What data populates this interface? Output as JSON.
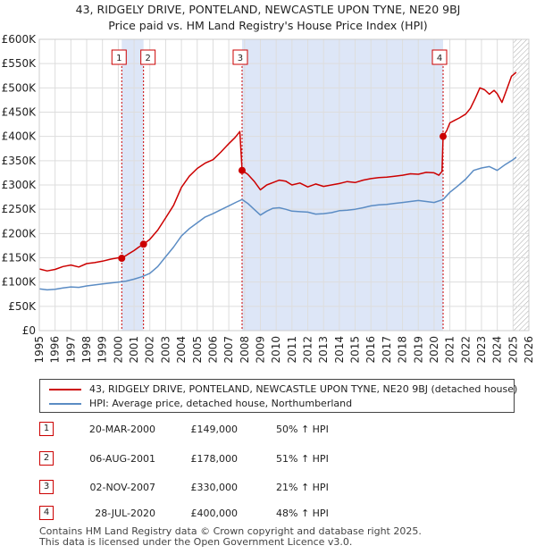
{
  "header": {
    "title_line1": "43, RIDGELY DRIVE, PONTELAND, NEWCASTLE UPON TYNE, NE20 9BJ",
    "title_line2": "Price paid vs. HM Land Registry's House Price Index (HPI)"
  },
  "colors": {
    "property": "#cc0000",
    "hpi": "#5b8cc4",
    "shade": "#dde6f7",
    "grid": "#dddddd",
    "hatch": "#aaaaaa"
  },
  "chart_data": {
    "type": "line",
    "title": "43, RIDGELY DRIVE, PONTELAND, NEWCASTLE UPON TYNE, NE20 9BJ — Price paid vs. HM Land Registry's House Price Index (HPI)",
    "xlabel": "",
    "ylabel": "",
    "xlim": [
      1995,
      2026
    ],
    "ylim": [
      0,
      600000
    ],
    "y_ticks": [
      0,
      50000,
      100000,
      150000,
      200000,
      250000,
      300000,
      350000,
      400000,
      450000,
      500000,
      550000,
      600000
    ],
    "y_tick_labels": [
      "£0",
      "£50K",
      "£100K",
      "£150K",
      "£200K",
      "£250K",
      "£300K",
      "£350K",
      "£400K",
      "£450K",
      "£500K",
      "£550K",
      "£600K"
    ],
    "x_ticks": [
      1995,
      1996,
      1997,
      1998,
      1999,
      2000,
      2001,
      2002,
      2003,
      2004,
      2005,
      2006,
      2007,
      2008,
      2009,
      2010,
      2011,
      2012,
      2013,
      2014,
      2015,
      2016,
      2017,
      2018,
      2019,
      2020,
      2021,
      2022,
      2023,
      2024,
      2025,
      2026
    ],
    "grid": true,
    "shaded_ranges": [
      [
        2000.22,
        2001.6
      ],
      [
        2007.84,
        2020.57
      ]
    ],
    "hatched_range": [
      2025.0,
      2026
    ],
    "series": [
      {
        "name": "43, RIDGELY DRIVE, PONTELAND, NEWCASTLE UPON TYNE, NE20 9BJ (detached house)",
        "x": [
          1995.0,
          1995.5,
          1996.0,
          1996.5,
          1997.0,
          1997.5,
          1998.0,
          1998.5,
          1999.0,
          1999.5,
          2000.0,
          2000.22,
          2000.6,
          2001.0,
          2001.3,
          2001.6,
          2002.0,
          2002.5,
          2003.0,
          2003.5,
          2004.0,
          2004.5,
          2005.0,
          2005.5,
          2006.0,
          2006.5,
          2007.0,
          2007.4,
          2007.7,
          2007.84,
          2008.2,
          2008.6,
          2009.0,
          2009.4,
          2009.8,
          2010.2,
          2010.6,
          2011.0,
          2011.5,
          2012.0,
          2012.5,
          2013.0,
          2013.5,
          2014.0,
          2014.5,
          2015.0,
          2015.5,
          2016.0,
          2016.5,
          2017.0,
          2017.5,
          2018.0,
          2018.5,
          2019.0,
          2019.5,
          2020.0,
          2020.3,
          2020.5,
          2020.57,
          2020.8,
          2021.0,
          2021.3,
          2021.6,
          2022.0,
          2022.3,
          2022.6,
          2022.9,
          2023.2,
          2023.5,
          2023.8,
          2024.0,
          2024.3,
          2024.6,
          2024.9,
          2025.2
        ],
        "y": [
          127000,
          123000,
          126000,
          132000,
          135000,
          131000,
          138000,
          140000,
          143000,
          147000,
          150000,
          149000,
          157000,
          165000,
          172000,
          178000,
          188000,
          207000,
          232000,
          258000,
          295000,
          318000,
          334000,
          345000,
          352000,
          368000,
          385000,
          398000,
          410000,
          330000,
          322000,
          308000,
          290000,
          300000,
          305000,
          310000,
          308000,
          300000,
          304000,
          296000,
          302000,
          297000,
          300000,
          303000,
          307000,
          305000,
          310000,
          313000,
          315000,
          316000,
          318000,
          320000,
          323000,
          322000,
          326000,
          325000,
          320000,
          328000,
          400000,
          412000,
          428000,
          433000,
          438000,
          446000,
          458000,
          478000,
          500000,
          496000,
          487000,
          495000,
          488000,
          470000,
          497000,
          524000,
          532000
        ]
      },
      {
        "name": "HPI: Average price, detached house, Northumberland",
        "x": [
          1995.0,
          1995.5,
          1996.0,
          1996.5,
          1997.0,
          1997.5,
          1998.0,
          1998.5,
          1999.0,
          1999.5,
          2000.0,
          2000.5,
          2001.0,
          2001.5,
          2002.0,
          2002.5,
          2003.0,
          2003.5,
          2004.0,
          2004.5,
          2005.0,
          2005.5,
          2006.0,
          2006.5,
          2007.0,
          2007.5,
          2007.84,
          2008.2,
          2008.6,
          2009.0,
          2009.4,
          2009.8,
          2010.2,
          2010.6,
          2011.0,
          2011.5,
          2012.0,
          2012.5,
          2013.0,
          2013.5,
          2014.0,
          2014.5,
          2015.0,
          2015.5,
          2016.0,
          2016.5,
          2017.0,
          2017.5,
          2018.0,
          2018.5,
          2019.0,
          2019.5,
          2020.0,
          2020.57,
          2021.0,
          2021.5,
          2022.0,
          2022.5,
          2023.0,
          2023.5,
          2024.0,
          2024.5,
          2025.0,
          2025.2
        ],
        "y": [
          86000,
          84000,
          85000,
          88000,
          90000,
          89000,
          92000,
          94000,
          96000,
          98000,
          100000,
          102000,
          106000,
          111000,
          118000,
          132000,
          152000,
          172000,
          195000,
          210000,
          222000,
          234000,
          241000,
          249000,
          257000,
          265000,
          270000,
          262000,
          250000,
          238000,
          246000,
          252000,
          253000,
          250000,
          246000,
          245000,
          244000,
          240000,
          241000,
          243000,
          247000,
          248000,
          250000,
          253000,
          257000,
          259000,
          260000,
          262000,
          264000,
          266000,
          268000,
          266000,
          264000,
          270000,
          285000,
          298000,
          312000,
          330000,
          335000,
          338000,
          330000,
          342000,
          352000,
          357000
        ]
      }
    ],
    "sales": [
      {
        "label": "1",
        "x": 2000.22,
        "y": 149000
      },
      {
        "label": "2",
        "x": 2001.6,
        "y": 178000
      },
      {
        "label": "3",
        "x": 2007.84,
        "y": 330000
      },
      {
        "label": "4",
        "x": 2020.57,
        "y": 400000
      }
    ]
  },
  "legend": {
    "property_label": "43, RIDGELY DRIVE, PONTELAND, NEWCASTLE UPON TYNE, NE20 9BJ (detached house)",
    "hpi_label": "HPI: Average price, detached house, Northumberland"
  },
  "transactions": [
    {
      "num": "1",
      "date": "20-MAR-2000",
      "price": "£149,000",
      "hpi": "50% ↑ HPI"
    },
    {
      "num": "2",
      "date": "06-AUG-2001",
      "price": "£178,000",
      "hpi": "51% ↑ HPI"
    },
    {
      "num": "3",
      "date": "02-NOV-2007",
      "price": "£330,000",
      "hpi": "21% ↑ HPI"
    },
    {
      "num": "4",
      "date": "28-JUL-2020",
      "price": "£400,000",
      "hpi": "48% ↑ HPI"
    }
  ],
  "footer": {
    "line1": "Contains HM Land Registry data © Crown copyright and database right 2025.",
    "line2": "This data is licensed under the Open Government Licence v3.0."
  }
}
